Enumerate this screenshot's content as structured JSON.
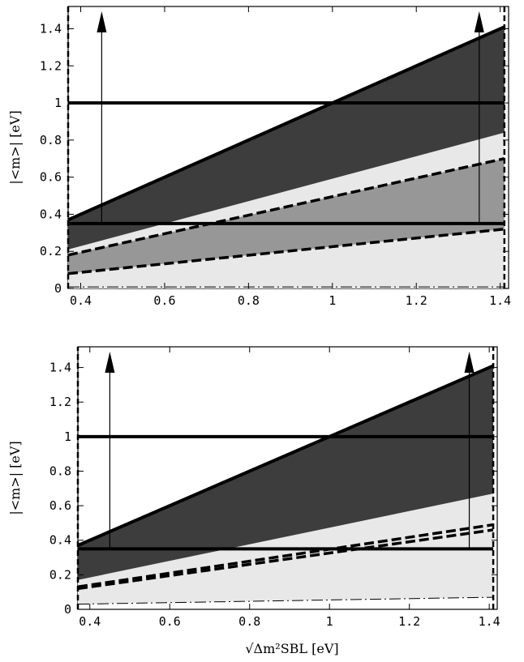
{
  "chart_data": [
    {
      "type": "area",
      "panel": "top",
      "ylabel": "|<m>| [eV]",
      "xlabel": "",
      "xlim": [
        0.37,
        1.42
      ],
      "ylim": [
        0,
        1.52
      ],
      "xticks": [
        0.4,
        0.6,
        0.8,
        1.0,
        1.2,
        1.4
      ],
      "xtick_labels": [
        "0.4",
        "0.6",
        "0.8",
        "1",
        "1.2",
        "1.4"
      ],
      "yticks": [
        0,
        0.2,
        0.4,
        0.6,
        0.8,
        1.0,
        1.2,
        1.4
      ],
      "ytick_labels": [
        "0",
        "0.2",
        "0.4",
        "0.6",
        "0.8",
        "1",
        "1.2",
        "1.4"
      ],
      "bands": [
        {
          "fill": "#e8e8e8",
          "x": [
            0.37,
            1.41
          ],
          "lower": [
            0.0,
            0.0
          ],
          "upper": [
            0.21,
            0.84
          ]
        },
        {
          "fill": "#979797",
          "x": [
            0.37,
            1.41
          ],
          "lower": [
            0.08,
            0.32
          ],
          "upper": [
            0.18,
            0.7
          ]
        },
        {
          "fill": "#3d3d3d",
          "x": [
            0.37,
            1.41
          ],
          "lower": [
            0.21,
            0.84
          ],
          "upper": [
            0.37,
            1.41
          ]
        }
      ],
      "lines": [
        {
          "style": "solid-thick",
          "x": [
            0.37,
            1.41
          ],
          "y": [
            0.37,
            1.41
          ]
        },
        {
          "style": "solid-thick",
          "x": [
            0.37,
            1.41
          ],
          "y": [
            1.0,
            1.0
          ]
        },
        {
          "style": "solid-thick",
          "x": [
            0.37,
            1.41
          ],
          "y": [
            0.35,
            0.35
          ]
        },
        {
          "style": "dashed-thick",
          "x": [
            0.37,
            1.41
          ],
          "y": [
            0.18,
            0.7
          ]
        },
        {
          "style": "dashed-thick",
          "x": [
            0.37,
            1.41
          ],
          "y": [
            0.08,
            0.32
          ]
        },
        {
          "style": "dashdot-thin",
          "x": [
            0.37,
            1.41
          ],
          "y": [
            0.008,
            0.008
          ]
        },
        {
          "style": "dashed-vertical",
          "x": [
            0.37,
            0.37
          ],
          "y": [
            0,
            1.52
          ]
        },
        {
          "style": "dashed-vertical",
          "x": [
            1.41,
            1.41
          ],
          "y": [
            0,
            1.52
          ]
        }
      ],
      "arrows": [
        {
          "x": 0.45,
          "y_from": 0.35,
          "y_to": 1.52
        },
        {
          "x": 1.35,
          "y_from": 0.35,
          "y_to": 1.52
        }
      ]
    },
    {
      "type": "area",
      "panel": "bottom",
      "ylabel": "|<m>| [eV]",
      "xlabel": "√Δm²SBL [eV]",
      "xlim": [
        0.37,
        1.42
      ],
      "ylim": [
        0,
        1.52
      ],
      "xticks": [
        0.4,
        0.6,
        0.8,
        1.0,
        1.2,
        1.4
      ],
      "xtick_labels": [
        "0.4",
        "0.6",
        "0.8",
        "1",
        "1.2",
        "1.4"
      ],
      "yticks": [
        0,
        0.2,
        0.4,
        0.6,
        0.8,
        1.0,
        1.2,
        1.4
      ],
      "ytick_labels": [
        "0",
        "0.2",
        "0.4",
        "0.6",
        "0.8",
        "1",
        "1.2",
        "1.4"
      ],
      "bands": [
        {
          "fill": "#e8e8e8",
          "x": [
            0.37,
            1.41
          ],
          "lower": [
            0.03,
            0.07
          ],
          "upper": [
            0.17,
            0.67
          ]
        },
        {
          "fill": "#3d3d3d",
          "x": [
            0.37,
            1.41
          ],
          "lower": [
            0.17,
            0.67
          ],
          "upper": [
            0.37,
            1.41
          ]
        }
      ],
      "lines": [
        {
          "style": "solid-thick",
          "x": [
            0.37,
            1.41
          ],
          "y": [
            0.37,
            1.41
          ]
        },
        {
          "style": "solid-thick",
          "x": [
            0.37,
            1.41
          ],
          "y": [
            1.0,
            1.0
          ]
        },
        {
          "style": "solid-thick",
          "x": [
            0.37,
            1.41
          ],
          "y": [
            0.35,
            0.35
          ]
        },
        {
          "style": "dashed-thick",
          "x": [
            0.37,
            1.41
          ],
          "y": [
            0.13,
            0.49
          ]
        },
        {
          "style": "dashed-thick",
          "x": [
            0.37,
            1.41
          ],
          "y": [
            0.12,
            0.46
          ]
        },
        {
          "style": "dashdot-thin",
          "x": [
            0.37,
            1.41
          ],
          "y": [
            0.03,
            0.07
          ]
        },
        {
          "style": "dashed-vertical",
          "x": [
            0.37,
            0.37
          ],
          "y": [
            0,
            1.52
          ]
        },
        {
          "style": "dashed-vertical",
          "x": [
            1.41,
            1.41
          ],
          "y": [
            0,
            1.52
          ]
        }
      ],
      "arrows": [
        {
          "x": 0.45,
          "y_from": 0.35,
          "y_to": 1.52
        },
        {
          "x": 1.35,
          "y_from": 0.35,
          "y_to": 1.52
        }
      ]
    }
  ]
}
